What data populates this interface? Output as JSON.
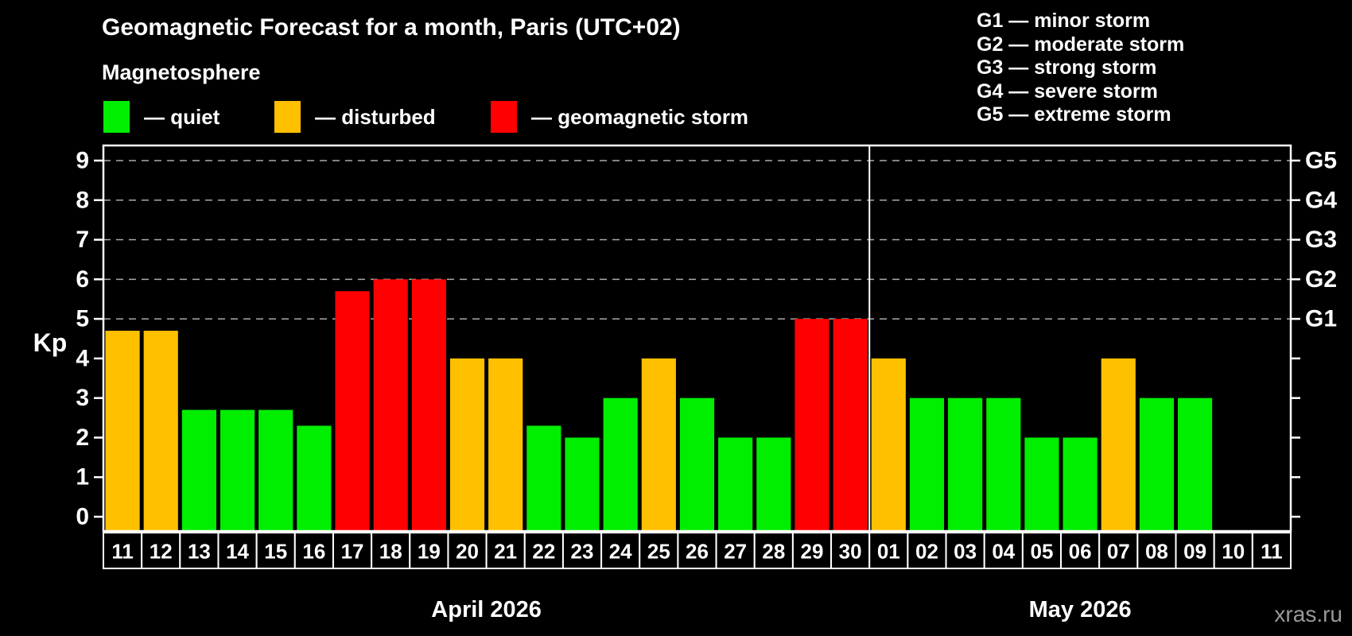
{
  "header": {
    "title": "Geomagnetic Forecast for a month, Paris (UTC+02)",
    "subtitle": "Magnetosphere"
  },
  "legend": [
    {
      "label": "— quiet",
      "level": "quiet"
    },
    {
      "label": "— disturbed",
      "level": "disturbed"
    },
    {
      "label": "— geomagnetic storm",
      "level": "storm"
    }
  ],
  "g_legend": [
    "G1 — minor storm",
    "G2 — moderate storm",
    "G3 — strong storm",
    "G4 — severe storm",
    "G5 — extreme storm"
  ],
  "y_axis": {
    "label": "Kp",
    "ticks": [
      0,
      1,
      2,
      3,
      4,
      5,
      6,
      7,
      8,
      9
    ]
  },
  "right_axis": {
    "labels": [
      {
        "kp": 5,
        "label": "G1"
      },
      {
        "kp": 6,
        "label": "G2"
      },
      {
        "kp": 7,
        "label": "G3"
      },
      {
        "kp": 8,
        "label": "G4"
      },
      {
        "kp": 9,
        "label": "G5"
      }
    ]
  },
  "chart_data": {
    "type": "bar",
    "title": "Geomagnetic Forecast for a month, Paris (UTC+02)",
    "xlabel": "",
    "ylabel": "Kp",
    "ylim": [
      0,
      9
    ],
    "grid": "dashed horizontal at Kp 5-9 only",
    "gridlines_kp": [
      5,
      6,
      7,
      8,
      9
    ],
    "months": [
      {
        "label": "April 2026",
        "days": [
          {
            "day": "11",
            "kp": 4.7,
            "level": "disturbed"
          },
          {
            "day": "12",
            "kp": 4.7,
            "level": "disturbed"
          },
          {
            "day": "13",
            "kp": 2.7,
            "level": "quiet"
          },
          {
            "day": "14",
            "kp": 2.7,
            "level": "quiet"
          },
          {
            "day": "15",
            "kp": 2.7,
            "level": "quiet"
          },
          {
            "day": "16",
            "kp": 2.3,
            "level": "quiet"
          },
          {
            "day": "17",
            "kp": 5.7,
            "level": "storm"
          },
          {
            "day": "18",
            "kp": 6.0,
            "level": "storm"
          },
          {
            "day": "19",
            "kp": 6.0,
            "level": "storm"
          },
          {
            "day": "20",
            "kp": 4.0,
            "level": "disturbed"
          },
          {
            "day": "21",
            "kp": 4.0,
            "level": "disturbed"
          },
          {
            "day": "22",
            "kp": 2.3,
            "level": "quiet"
          },
          {
            "day": "23",
            "kp": 2.0,
            "level": "quiet"
          },
          {
            "day": "24",
            "kp": 3.0,
            "level": "quiet"
          },
          {
            "day": "25",
            "kp": 4.0,
            "level": "disturbed"
          },
          {
            "day": "26",
            "kp": 3.0,
            "level": "quiet"
          },
          {
            "day": "27",
            "kp": 2.0,
            "level": "quiet"
          },
          {
            "day": "28",
            "kp": 2.0,
            "level": "quiet"
          },
          {
            "day": "29",
            "kp": 5.0,
            "level": "storm"
          },
          {
            "day": "30",
            "kp": 5.0,
            "level": "storm"
          }
        ]
      },
      {
        "label": "May 2026",
        "days": [
          {
            "day": "01",
            "kp": 4.0,
            "level": "disturbed"
          },
          {
            "day": "02",
            "kp": 3.0,
            "level": "quiet"
          },
          {
            "day": "03",
            "kp": 3.0,
            "level": "quiet"
          },
          {
            "day": "04",
            "kp": 3.0,
            "level": "quiet"
          },
          {
            "day": "05",
            "kp": 2.0,
            "level": "quiet"
          },
          {
            "day": "06",
            "kp": 2.0,
            "level": "quiet"
          },
          {
            "day": "07",
            "kp": 4.0,
            "level": "disturbed"
          },
          {
            "day": "08",
            "kp": 3.0,
            "level": "quiet"
          },
          {
            "day": "09",
            "kp": 3.0,
            "level": "quiet"
          },
          {
            "day": "10",
            "kp": null,
            "level": null
          },
          {
            "day": "11",
            "kp": null,
            "level": null
          }
        ]
      }
    ]
  },
  "footer": {
    "watermark": "xras.ru"
  },
  "colors": {
    "quiet": "#00ee00",
    "disturbed": "#ffc000",
    "storm": "#ff0000",
    "background": "#000000",
    "grid": "#aaaaaa",
    "frame": "#ffffff",
    "watermark": "#999999"
  }
}
